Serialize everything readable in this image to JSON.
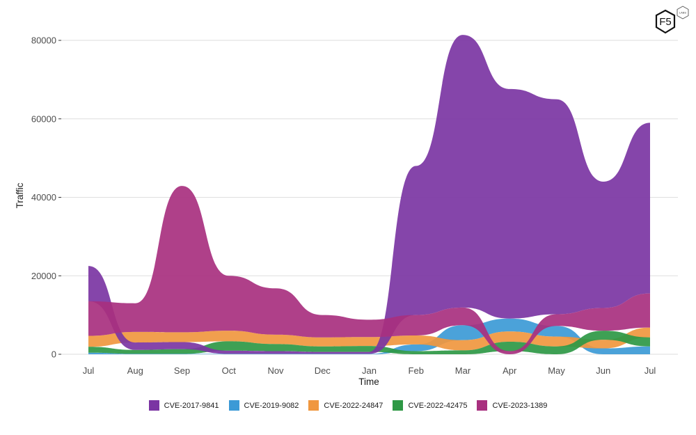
{
  "chart_data": {
    "type": "area",
    "subtype": "ranked-ribbon (bump area)",
    "title": "",
    "xlabel": "Time",
    "ylabel": "Traffic",
    "ylim": [
      0,
      80000
    ],
    "yticks": [
      0,
      20000,
      40000,
      60000,
      80000
    ],
    "ytick_labels": [
      "0",
      "20000",
      "40000",
      "60000",
      "80000"
    ],
    "grid": true,
    "legend_position": "bottom",
    "categories": [
      "Jul",
      "Aug",
      "Sep",
      "Oct",
      "Nov",
      "Dec",
      "Jan",
      "Feb",
      "Mar",
      "Apr",
      "May",
      "Jun",
      "Jul"
    ],
    "series": [
      {
        "name": "CVE-2017-9841",
        "color": "#7b35a3",
        "values": [
          9000,
          1900,
          1800,
          800,
          700,
          500,
          500,
          38000,
          69500,
          58500,
          54800,
          32200,
          43500
        ]
      },
      {
        "name": "CVE-2019-9082",
        "color": "#3c9ad6",
        "values": [
          400,
          100,
          100,
          100,
          100,
          100,
          100,
          1700,
          3800,
          3300,
          2700,
          1500,
          2000
        ]
      },
      {
        "name": "CVE-2022-24847",
        "color": "#f0973f",
        "values": [
          2800,
          2700,
          2500,
          2700,
          2400,
          2300,
          2300,
          2300,
          2600,
          2600,
          2500,
          2200,
          2500
        ]
      },
      {
        "name": "CVE-2022-42475",
        "color": "#2e9845",
        "values": [
          1500,
          1000,
          1200,
          2400,
          1800,
          1400,
          1500,
          800,
          1000,
          2400,
          2000,
          2300,
          2300
        ]
      },
      {
        "name": "CVE-2023-1389",
        "color": "#a8307f",
        "values": [
          8800,
          7300,
          37300,
          14000,
          11800,
          5700,
          4400,
          5200,
          4500,
          800,
          3000,
          5800,
          8700
        ]
      }
    ]
  },
  "legend": {
    "items": [
      {
        "label": "CVE-2017-9841",
        "color": "#7b35a3"
      },
      {
        "label": "CVE-2019-9082",
        "color": "#3c9ad6"
      },
      {
        "label": "CVE-2022-24847",
        "color": "#f0973f"
      },
      {
        "label": "CVE-2022-42475",
        "color": "#2e9845"
      },
      {
        "label": "CVE-2023-1389",
        "color": "#a8307f"
      }
    ]
  },
  "logo": {
    "main": "F5",
    "badge": "LABS"
  }
}
